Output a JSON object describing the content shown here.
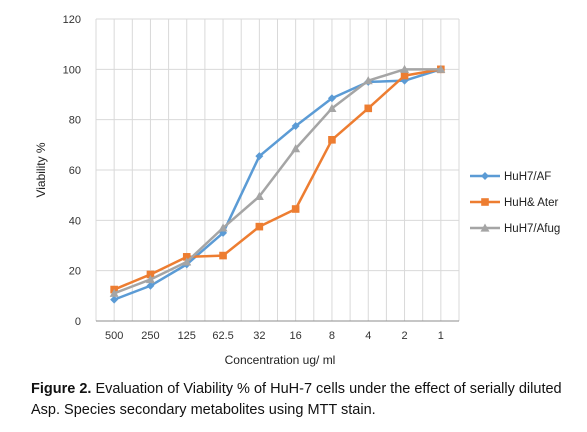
{
  "chart_data": {
    "type": "line",
    "xlabel": "Concentration ug/ ml",
    "ylabel": "Viability %",
    "categories": [
      "500",
      "250",
      "125",
      "62.5",
      "32",
      "16",
      "8",
      "4",
      "2",
      "1"
    ],
    "ylim": [
      0,
      120
    ],
    "yticks": [
      "0",
      "20",
      "40",
      "60",
      "80",
      "100",
      "120"
    ],
    "grid": true,
    "legend_position": "right",
    "series": [
      {
        "name": "HuH7/AF",
        "color": "#5B9BD5",
        "marker": "diamond",
        "values": [
          8.5,
          14,
          22.5,
          35,
          65.5,
          77.5,
          88.5,
          95,
          95.5,
          100
        ]
      },
      {
        "name": "HuH& Ater",
        "color": "#ED7D31",
        "marker": "square",
        "values": [
          12.5,
          18.5,
          25.5,
          26,
          37.5,
          44.5,
          72,
          84.5,
          97.5,
          100
        ]
      },
      {
        "name": "HuH7/Afug",
        "color": "#A5A5A5",
        "marker": "triangle",
        "values": [
          11,
          16.5,
          23.5,
          37,
          49.5,
          68.5,
          84.5,
          95.5,
          100,
          100
        ]
      }
    ]
  },
  "caption": {
    "label": "Figure 2.",
    "text": " Evaluation of Viability % of HuH-7 cells under the effect of serially diluted Asp. Species secondary metabolites using MTT stain."
  }
}
